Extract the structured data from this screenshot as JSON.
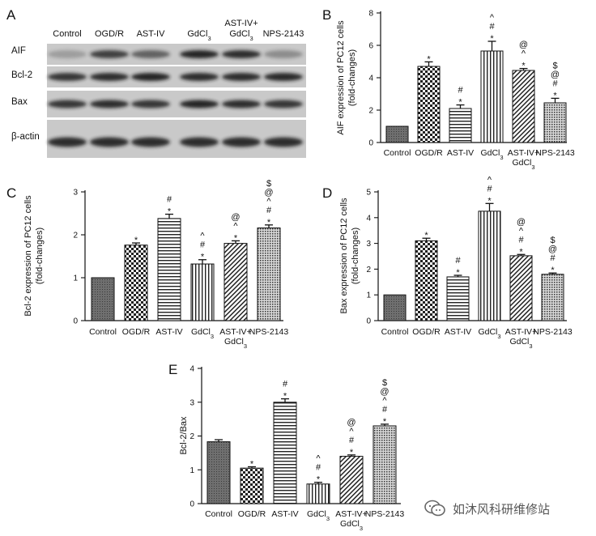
{
  "watermark": {
    "text": "如沐风科研维修站"
  },
  "blot": {
    "letter": "A",
    "columns": [
      "Control",
      "OGD/R",
      "AST-IV",
      "GdCl3",
      "AST-IV+ GdCl3",
      "NPS-2143"
    ],
    "rows": [
      "AIF",
      "Bcl-2",
      "Bax",
      "β-actin"
    ]
  },
  "chart_data": [
    {
      "id": "B",
      "type": "bar",
      "letter": "B",
      "categories": [
        "Control",
        "OGD/R",
        "AST-IV",
        "GdCl3",
        "AST-IV+ GdCl3",
        "NPS-2143"
      ],
      "values": [
        1.0,
        4.7,
        2.1,
        5.65,
        4.45,
        2.45
      ],
      "errors": [
        0,
        0.28,
        0.22,
        0.6,
        0.12,
        0.28
      ],
      "sig": [
        [],
        [
          "*"
        ],
        [
          "*",
          "#"
        ],
        [
          "*",
          "#",
          "^"
        ],
        [
          "*",
          "^",
          "@"
        ],
        [
          "*",
          "#",
          "@",
          "$"
        ]
      ],
      "ylabel": [
        "AIF expression of PC12 cells",
        "(fold-changes)"
      ],
      "ylim": [
        0,
        8
      ],
      "yticks": [
        0,
        2,
        4,
        6,
        8
      ],
      "patterns": [
        "dark",
        "check",
        "hlines",
        "vlines",
        "diag",
        "dots"
      ]
    },
    {
      "id": "C",
      "type": "bar",
      "letter": "C",
      "categories": [
        "Control",
        "OGD/R",
        "AST-IV",
        "GdCl3",
        "AST-IV+ GdCl3",
        "NPS-2143"
      ],
      "values": [
        1.0,
        1.76,
        2.38,
        1.32,
        1.8,
        2.16
      ],
      "errors": [
        0,
        0.05,
        0.1,
        0.1,
        0.06,
        0.07
      ],
      "sig": [
        [],
        [
          "*"
        ],
        [
          "*",
          "#"
        ],
        [
          "*",
          "#",
          "^"
        ],
        [
          "*",
          "^",
          "@"
        ],
        [
          "*",
          "#",
          "^",
          "@",
          "$"
        ]
      ],
      "ylabel": [
        "Bcl-2 expression of PC12 cells",
        "(fold-changes)"
      ],
      "ylim": [
        0,
        3
      ],
      "yticks": [
        0,
        1,
        2,
        3
      ],
      "patterns": [
        "dark",
        "check",
        "hlines",
        "vlines",
        "diag",
        "dots"
      ]
    },
    {
      "id": "D",
      "type": "bar",
      "letter": "D",
      "categories": [
        "Control",
        "OGD/R",
        "AST-IV",
        "GdCl3",
        "AST-IV+ GdCl3",
        "NPS-2143"
      ],
      "values": [
        1.0,
        3.1,
        1.7,
        4.25,
        2.52,
        1.8
      ],
      "errors": [
        0,
        0.1,
        0.06,
        0.3,
        0.05,
        0.05
      ],
      "sig": [
        [],
        [
          "*"
        ],
        [
          "*",
          "#"
        ],
        [
          "*",
          "#",
          "^"
        ],
        [
          "*",
          "#",
          "^",
          "@"
        ],
        [
          "*",
          "#",
          "@",
          "$"
        ]
      ],
      "ylabel": [
        "Bax expression of PC12 cells",
        "(fold-changes)"
      ],
      "ylim": [
        0,
        5
      ],
      "yticks": [
        0,
        1,
        2,
        3,
        4,
        5
      ],
      "patterns": [
        "dark",
        "check",
        "hlines",
        "vlines",
        "diag",
        "dots"
      ]
    },
    {
      "id": "E",
      "type": "bar",
      "letter": "E",
      "categories": [
        "Control",
        "OGD/R",
        "AST-IV",
        "GdCl3",
        "AST-IV+ GdCl3",
        "NPS-2143"
      ],
      "values": [
        1.83,
        1.05,
        3.0,
        0.58,
        1.4,
        2.3
      ],
      "errors": [
        0.06,
        0.04,
        0.1,
        0.05,
        0.04,
        0.05
      ],
      "sig": [
        [],
        [
          "*"
        ],
        [
          "*",
          "#"
        ],
        [
          "*",
          "#",
          "^"
        ],
        [
          "*",
          "#",
          "^",
          "@"
        ],
        [
          "*",
          "#",
          "^",
          "@",
          "$"
        ]
      ],
      "ylabel": [
        "Bcl-2/Bax"
      ],
      "ylim": [
        0,
        4
      ],
      "yticks": [
        0,
        1,
        2,
        3,
        4
      ],
      "patterns": [
        "dark",
        "check",
        "hlines",
        "vlines",
        "diag",
        "dots"
      ]
    }
  ]
}
